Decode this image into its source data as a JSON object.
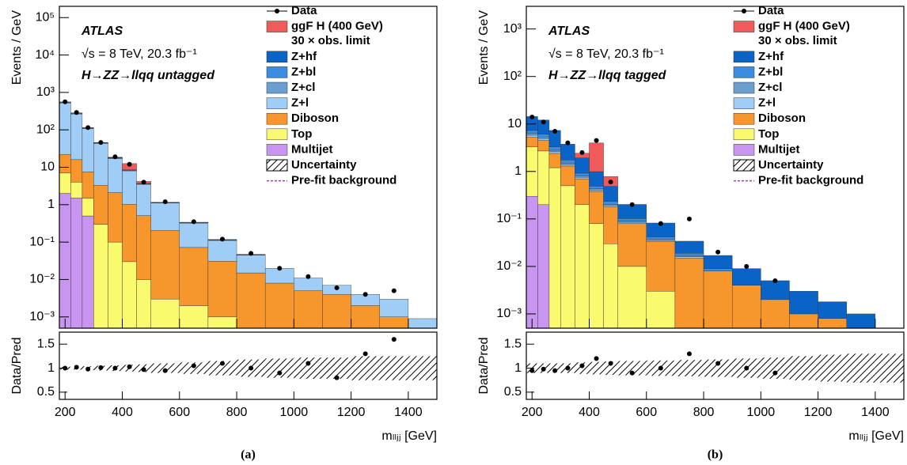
{
  "chart_data": [
    {
      "type": "stacked_histogram",
      "atlas": "ATLAS",
      "energy": "√s = 8 TeV, 20.3 fb⁻¹",
      "channel": "H→ZZ→llqq untagged",
      "ylabel": "Events / GeV",
      "xlabel": "mₗₗⱼⱼ [GeV]",
      "ratio_label": "Data/Pred",
      "panel": "(a)",
      "log_y": true,
      "legend_data": "Data",
      "signal_note": "30 × obs. limit",
      "legend_uncertainty": "Uncertainty",
      "legend_prefit": "Pre-fit background",
      "bins": [
        180,
        220,
        260,
        300,
        350,
        400,
        450,
        500,
        600,
        700,
        800,
        900,
        1000,
        1100,
        1200,
        1300,
        1400,
        1500
      ],
      "xlim": [
        180,
        1500
      ],
      "xticks": [
        200,
        400,
        600,
        800,
        1000,
        1200,
        1400
      ],
      "ylim": [
        0.0005,
        200000
      ],
      "yticks": [
        {
          "value": 0.001,
          "label": "10⁻³"
        },
        {
          "value": 0.01,
          "label": "10⁻²"
        },
        {
          "value": 0.1,
          "label": "10⁻¹"
        },
        1,
        10,
        {
          "value": 100,
          "label": "10²"
        },
        {
          "value": 1000,
          "label": "10³"
        },
        {
          "value": 10000,
          "label": "10⁴"
        },
        {
          "value": 100000,
          "label": "10⁵"
        }
      ],
      "series": [
        {
          "name": "ggF H (400 GeV)",
          "color": "#f05a5a",
          "values": [
            0,
            0,
            0,
            0,
            0.5,
            4,
            0.5,
            0,
            0,
            0,
            0,
            0,
            0,
            0,
            0,
            0,
            0
          ]
        },
        {
          "name": "Z+hf",
          "color": "#0a64c8",
          "values": [
            5,
            3,
            1,
            0.4,
            0.15,
            0.07,
            0.02,
            0.007,
            0.002,
            0.001,
            0,
            0,
            0,
            0,
            0,
            0,
            0
          ]
        },
        {
          "name": "Z+bl",
          "color": "#3c8ce0",
          "values": [
            10,
            5,
            2,
            0.8,
            0.3,
            0.15,
            0.05,
            0.015,
            0.005,
            0.002,
            0.001,
            0,
            0,
            0,
            0,
            0,
            0
          ]
        },
        {
          "name": "Z+cl",
          "color": "#6c9fd0",
          "values": [
            20,
            10,
            4,
            1.5,
            0.6,
            0.3,
            0.1,
            0.03,
            0.01,
            0.003,
            0.001,
            0,
            0,
            0,
            0,
            0,
            0
          ]
        },
        {
          "name": "Z+l",
          "color": "#a0cdf5",
          "values": [
            500,
            250,
            100,
            40,
            15,
            7,
            3,
            0.9,
            0.25,
            0.08,
            0.03,
            0.012,
            0.006,
            0.003,
            0.002,
            0.002,
            0.0005
          ]
        },
        {
          "name": "Diboson",
          "color": "#f7962d",
          "values": [
            15,
            12,
            6,
            3,
            2,
            1,
            0.5,
            0.2,
            0.07,
            0.03,
            0.015,
            0.008,
            0.005,
            0.004,
            0.002,
            0.001,
            0.0004
          ]
        },
        {
          "name": "Top",
          "color": "#fafa6e",
          "values": [
            5,
            2.5,
            1,
            0.3,
            0.1,
            0.03,
            0.01,
            0.003,
            0.002,
            0.001,
            0,
            0,
            0,
            0,
            0,
            0,
            0
          ]
        },
        {
          "name": "Multijet",
          "color": "#c896f0",
          "values": [
            2,
            1.5,
            0.5,
            0,
            0,
            0,
            0,
            0,
            0,
            0,
            0,
            0,
            0,
            0,
            0,
            0,
            0
          ]
        }
      ],
      "data": [
        560,
        290,
        115,
        46,
        19,
        12,
        4,
        1.2,
        0.35,
        0.12,
        0.05,
        0.02,
        0.012,
        0.006,
        0.004,
        0.005,
        null
      ],
      "ratio": [
        1.0,
        1.02,
        0.98,
        1.01,
        1.0,
        1.03,
        0.97,
        0.95,
        1.05,
        1.1,
        1.0,
        0.9,
        1.1,
        0.8,
        1.3,
        1.6,
        null
      ],
      "ratio_band_low": [
        0.97,
        0.97,
        0.96,
        0.95,
        0.94,
        0.93,
        0.92,
        0.9,
        0.88,
        0.85,
        0.82,
        0.8,
        0.78,
        0.78,
        0.75,
        0.75,
        0.75
      ],
      "ratio_band_high": [
        1.03,
        1.03,
        1.04,
        1.05,
        1.06,
        1.07,
        1.08,
        1.1,
        1.12,
        1.15,
        1.18,
        1.2,
        1.22,
        1.22,
        1.25,
        1.25,
        1.25
      ],
      "ratio_ylim": [
        0.35,
        1.75
      ],
      "ratio_yticks": [
        0.5,
        1,
        1.5
      ]
    },
    {
      "type": "stacked_histogram",
      "atlas": "ATLAS",
      "energy": "√s = 8 TeV, 20.3 fb⁻¹",
      "channel": "H→ZZ→llqq tagged",
      "ylabel": "Events / GeV",
      "xlabel": "mₗₗⱼⱼ [GeV]",
      "ratio_label": "Data/Pred",
      "panel": "(b)",
      "log_y": true,
      "legend_data": "Data",
      "signal_note": "30 × obs. limit",
      "legend_uncertainty": "Uncertainty",
      "legend_prefit": "Pre-fit background",
      "bins": [
        180,
        220,
        260,
        300,
        350,
        400,
        450,
        500,
        600,
        700,
        800,
        900,
        1000,
        1100,
        1200,
        1300,
        1400,
        1500
      ],
      "xlim": [
        180,
        1500
      ],
      "xticks": [
        200,
        400,
        600,
        800,
        1000,
        1200,
        1400
      ],
      "ylim": [
        0.0005,
        3000
      ],
      "yticks": [
        {
          "value": 0.001,
          "label": "10⁻³"
        },
        {
          "value": 0.01,
          "label": "10⁻²"
        },
        {
          "value": 0.1,
          "label": "10⁻¹"
        },
        1,
        10,
        {
          "value": 100,
          "label": "10²"
        },
        {
          "value": 1000,
          "label": "10³"
        }
      ],
      "series": [
        {
          "name": "ggF H (400 GeV)",
          "color": "#f05a5a",
          "values": [
            0,
            0,
            0,
            0,
            0.5,
            3,
            0.3,
            0,
            0,
            0,
            0,
            0,
            0,
            0,
            0,
            0,
            0
          ]
        },
        {
          "name": "Z+hf",
          "color": "#0a64c8",
          "values": [
            7,
            6,
            4,
            2,
            1,
            0.5,
            0.25,
            0.1,
            0.04,
            0.015,
            0.008,
            0.005,
            0.003,
            0.002,
            0.001,
            0.0006,
            0.0004
          ]
        },
        {
          "name": "Z+bl",
          "color": "#3c8ce0",
          "values": [
            1,
            0.8,
            0.5,
            0.25,
            0.12,
            0.06,
            0.03,
            0.012,
            0.005,
            0.002,
            0.001,
            0,
            0,
            0,
            0,
            0,
            0
          ]
        },
        {
          "name": "Z+cl",
          "color": "#6c9fd0",
          "values": [
            0.5,
            0.4,
            0.2,
            0.1,
            0.05,
            0.025,
            0.012,
            0.005,
            0.002,
            0.001,
            0,
            0,
            0,
            0,
            0,
            0,
            0
          ]
        },
        {
          "name": "Z+l",
          "color": "#a0cdf5",
          "values": [
            0.5,
            0.4,
            0.2,
            0.1,
            0.05,
            0.025,
            0.012,
            0.005,
            0.002,
            0.001,
            0,
            0,
            0,
            0,
            0,
            0,
            0
          ]
        },
        {
          "name": "Diboson",
          "color": "#f7962d",
          "values": [
            2,
            1.8,
            1.2,
            0.8,
            0.5,
            0.3,
            0.15,
            0.07,
            0.03,
            0.015,
            0.008,
            0.004,
            0.002,
            0.001,
            0.0008,
            0.0004,
            0
          ]
        },
        {
          "name": "Top",
          "color": "#fafa6e",
          "values": [
            3,
            2.5,
            1.2,
            0.5,
            0.2,
            0.08,
            0.03,
            0.01,
            0.003,
            0,
            0,
            0,
            0,
            0,
            0,
            0,
            0
          ]
        },
        {
          "name": "Multijet",
          "color": "#c896f0",
          "values": [
            0.3,
            0.2,
            0,
            0,
            0,
            0,
            0,
            0,
            0,
            0,
            0,
            0,
            0,
            0,
            0,
            0,
            0
          ]
        }
      ],
      "data": [
        14,
        11,
        7,
        4,
        2.5,
        4.5,
        0.6,
        0.2,
        0.08,
        0.1,
        0.02,
        0.01,
        0.005,
        null,
        null,
        null,
        null
      ],
      "ratio": [
        0.95,
        0.98,
        0.95,
        1.0,
        1.05,
        1.2,
        1.1,
        0.9,
        1.0,
        1.3,
        1.1,
        1.0,
        0.9,
        null,
        null,
        null,
        null
      ],
      "ratio_band_low": [
        0.9,
        0.9,
        0.9,
        0.9,
        0.88,
        0.87,
        0.86,
        0.85,
        0.84,
        0.83,
        0.82,
        0.8,
        0.78,
        0.75,
        0.72,
        0.7,
        0.7
      ],
      "ratio_band_high": [
        1.1,
        1.1,
        1.1,
        1.1,
        1.12,
        1.13,
        1.14,
        1.15,
        1.16,
        1.17,
        1.18,
        1.2,
        1.22,
        1.25,
        1.28,
        1.3,
        1.3
      ],
      "ratio_ylim": [
        0.35,
        1.75
      ],
      "ratio_yticks": [
        0.5,
        1,
        1.5
      ]
    }
  ]
}
